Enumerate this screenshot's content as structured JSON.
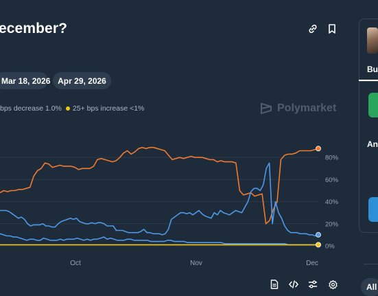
{
  "market": {
    "title": "ecember?"
  },
  "date_pills": [
    "Mar 18, 2026",
    "Apr 29, 2026"
  ],
  "legend": [
    {
      "text": "bps decrease 1.0%",
      "color": "#4f99e8"
    },
    {
      "text": "25+ bps increase <1%",
      "color": "#f5c518"
    }
  ],
  "watermark": "Polymarket",
  "chart_data": {
    "type": "line",
    "x_ticks": [
      "Oct",
      "Nov",
      "Dec"
    ],
    "y_ticks": [
      "80%",
      "60%",
      "40%",
      "20%",
      "0%"
    ],
    "ylim": [
      0,
      100
    ],
    "grid": true,
    "series": [
      {
        "color": "#f07b2f",
        "values": [
          48,
          50,
          49,
          50,
          50,
          51,
          51,
          52,
          53,
          63,
          68,
          70,
          75,
          74,
          71,
          72,
          73,
          72,
          72,
          72,
          71,
          69,
          70,
          70,
          70,
          72,
          78,
          79,
          78,
          77,
          76,
          77,
          80,
          84,
          86,
          83,
          85,
          88,
          89,
          88,
          89,
          89,
          88,
          87,
          86,
          82,
          78,
          79,
          80,
          79,
          80,
          81,
          80,
          80,
          80,
          79,
          78,
          78,
          76,
          77,
          76,
          76,
          76,
          75,
          50,
          46,
          47,
          48,
          45,
          46,
          47,
          20,
          23,
          33,
          40,
          78,
          82,
          83,
          83,
          84,
          86,
          86,
          86,
          86,
          87,
          88
        ]
      },
      {
        "color": "#4f99e8",
        "values": [
          32,
          32,
          32,
          31,
          29,
          27,
          25,
          26,
          24,
          20,
          18,
          19,
          19,
          19,
          20,
          18,
          18,
          17,
          17,
          20,
          22,
          23,
          24,
          25,
          24,
          25,
          22,
          21,
          20,
          20,
          21,
          20,
          21,
          21,
          20,
          18,
          18,
          18,
          14,
          14,
          14,
          13,
          12,
          12,
          12,
          12,
          13,
          15,
          12,
          12,
          11,
          11,
          11,
          10,
          11,
          15,
          24,
          26,
          28,
          30,
          30,
          29,
          30,
          28,
          30,
          32,
          29,
          27,
          26,
          25,
          30,
          28,
          32,
          30,
          29,
          28,
          30,
          32,
          31,
          30,
          35,
          40,
          49,
          52,
          52,
          50,
          55,
          70,
          75,
          20,
          40,
          30,
          25,
          18,
          14,
          12,
          12,
          12,
          11,
          11,
          11,
          10,
          10,
          9,
          10
        ]
      },
      {
        "color": "#4f99e8",
        "values": [
          11,
          10,
          9,
          9,
          8,
          8,
          7,
          6,
          5,
          6,
          6,
          5,
          5,
          7,
          6,
          5,
          5,
          5,
          6,
          5,
          6,
          6,
          6,
          7,
          6,
          5,
          6,
          5,
          6,
          6,
          7,
          8,
          6,
          7,
          6,
          5,
          5,
          5,
          6,
          6,
          5,
          5,
          5,
          5,
          5,
          4,
          4,
          4,
          4,
          4,
          5,
          5,
          4,
          4,
          4,
          4,
          3,
          3,
          3,
          3,
          3,
          3,
          3,
          3,
          3,
          3,
          3,
          2,
          2,
          2,
          2,
          2,
          2,
          2,
          2,
          2,
          2,
          2,
          2,
          2,
          2,
          2,
          2,
          2,
          2,
          2,
          1,
          1,
          1,
          1,
          1,
          1,
          1,
          1,
          1,
          1
        ]
      },
      {
        "color": "#f5c518",
        "values": [
          1,
          1,
          1,
          1,
          1,
          1,
          1,
          1,
          1,
          1,
          1,
          1,
          1,
          1,
          1,
          1,
          1,
          1,
          1,
          1,
          1,
          1,
          1,
          1,
          1,
          1,
          1,
          1,
          1,
          1,
          1,
          1,
          1,
          1,
          1,
          1,
          1,
          1,
          1,
          1,
          1,
          1,
          1,
          1,
          1,
          1,
          1,
          1,
          1,
          1,
          1,
          1,
          1,
          1,
          1,
          1,
          1,
          1,
          1,
          1,
          1,
          1,
          1,
          1,
          1,
          1,
          1,
          1,
          1,
          1,
          1,
          1,
          1,
          1,
          1,
          1,
          1,
          1,
          1,
          1,
          1,
          1,
          1,
          1,
          1,
          1,
          1,
          1,
          1,
          1,
          1,
          1,
          1,
          1,
          1,
          1
        ]
      }
    ]
  },
  "side_panel": {
    "tab_label": "Bu",
    "amount_label": "An"
  },
  "filter_pill": "All",
  "icons": [
    "link-icon",
    "bookmark-icon",
    "document-icon",
    "code-icon",
    "sliders-icon",
    "settings-icon",
    "polymarket-logo-icon"
  ]
}
